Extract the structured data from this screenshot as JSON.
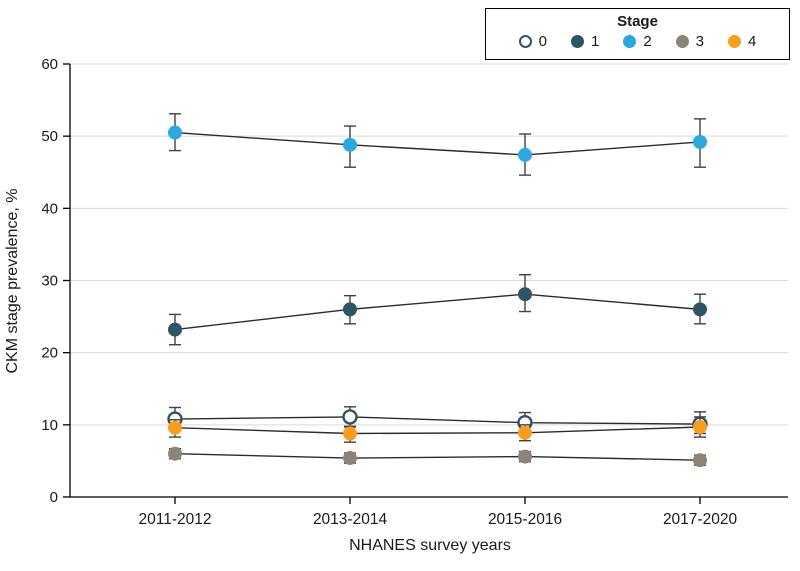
{
  "figure": {
    "ylabel": "CKM stage prevalence, %",
    "xlabel": "NHANES survey years",
    "legend_title": "Stage"
  },
  "chart_data": {
    "type": "line",
    "title": "",
    "xlabel": "NHANES survey years",
    "ylabel": "CKM stage prevalence, %",
    "categories": [
      "2011-2012",
      "2013-2014",
      "2015-2016",
      "2017-2020"
    ],
    "ylim": [
      0,
      60
    ],
    "yticks": [
      0,
      10,
      20,
      30,
      40,
      50,
      60
    ],
    "grid": true,
    "legend_position": "top-right",
    "error_bar_color": "#404040",
    "line_color": "#2b2b2b",
    "series": [
      {
        "name": "0",
        "marker": "open-circle",
        "color": "#2f5466",
        "fill": "#ffffff",
        "values": [
          10.8,
          11.1,
          10.3,
          10.1
        ],
        "ci_low": [
          9.3,
          9.8,
          9.0,
          8.8
        ],
        "ci_high": [
          12.4,
          12.5,
          11.7,
          11.8
        ]
      },
      {
        "name": "1",
        "marker": "circle",
        "color": "#2f5466",
        "fill": "#2f5466",
        "values": [
          23.2,
          26.0,
          28.1,
          26.0
        ],
        "ci_low": [
          21.1,
          24.0,
          25.7,
          24.0
        ],
        "ci_high": [
          25.3,
          27.9,
          30.8,
          28.1
        ]
      },
      {
        "name": "2",
        "marker": "circle",
        "color": "#2ba8e0",
        "fill": "#2ba8e0",
        "values": [
          50.5,
          48.8,
          47.4,
          49.2
        ],
        "ci_low": [
          48.0,
          45.7,
          44.6,
          45.7
        ],
        "ci_high": [
          53.1,
          51.4,
          50.3,
          52.4
        ]
      },
      {
        "name": "3",
        "marker": "circle",
        "color": "#8d8478",
        "fill": "#8d8478",
        "values": [
          6.0,
          5.4,
          5.6,
          5.1
        ],
        "ci_low": [
          5.3,
          4.7,
          4.9,
          4.4
        ],
        "ci_high": [
          6.7,
          6.1,
          6.3,
          5.8
        ]
      },
      {
        "name": "4",
        "marker": "circle",
        "color": "#f89e1b",
        "fill": "#f89e1b",
        "values": [
          9.6,
          8.8,
          8.9,
          9.7
        ],
        "ci_low": [
          8.3,
          7.6,
          7.8,
          8.3
        ],
        "ci_high": [
          10.7,
          9.7,
          10.0,
          11.1
        ]
      }
    ]
  }
}
